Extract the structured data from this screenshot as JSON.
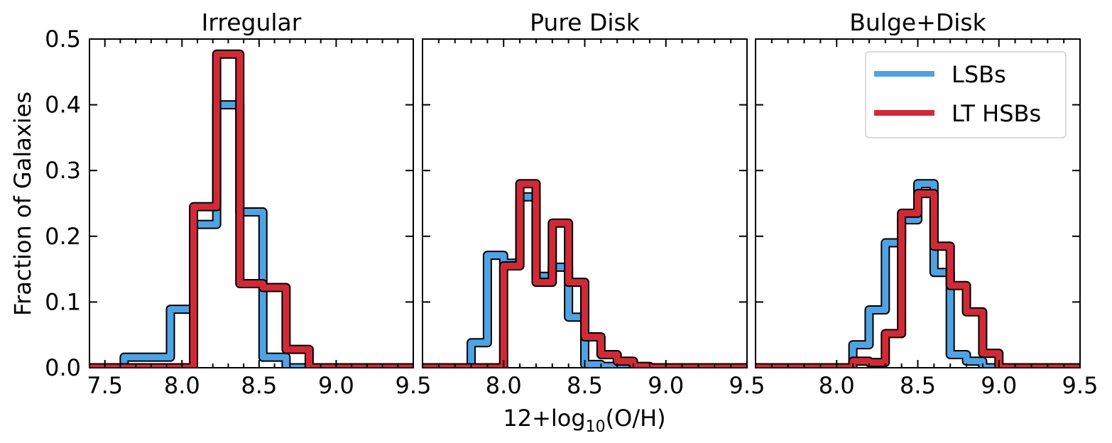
{
  "colors": {
    "LSBs": "#4fa3e3",
    "LT HSBs": "#d12a37"
  },
  "ylabel": "Fraction of Galaxies",
  "xlabel": "12+log",
  "xlabel_sub": "10",
  "xlabel_end": "(O/H)",
  "legend": [
    {
      "key": "LSBs",
      "label": "LSBs"
    },
    {
      "key": "LT HSBs",
      "label": "LT HSBs"
    }
  ],
  "chart_data": [
    {
      "type": "histogram",
      "title": "Irregular",
      "xlim": [
        7.4,
        9.5
      ],
      "ylim": [
        0,
        0.5
      ],
      "xticks": [
        "7.5",
        "8.0",
        "8.5",
        "9.0",
        "9.5"
      ],
      "yticks": [
        "0.0",
        "0.1",
        "0.2",
        "0.3",
        "0.4",
        "0.5"
      ],
      "bin_edges": [
        7.4,
        7.475,
        7.55,
        7.625,
        7.7,
        7.775,
        7.85,
        7.925,
        8.0,
        8.075,
        8.15,
        8.225,
        8.3,
        8.375,
        8.45,
        8.525,
        8.6,
        8.675,
        8.75,
        8.825,
        8.9,
        8.975,
        9.05,
        9.125,
        9.2,
        9.275,
        9.35,
        9.425,
        9.5
      ],
      "series": [
        {
          "name": "LSBs",
          "values": [
            0,
            0,
            0,
            0.016,
            0.016,
            0.016,
            0.016,
            0.089,
            0.089,
            0.218,
            0.218,
            0.4,
            0.4,
            0.237,
            0.237,
            0.016,
            0.016,
            0,
            0,
            0,
            0,
            0,
            0,
            0,
            0,
            0,
            0,
            0
          ]
        },
        {
          "name": "LT HSBs",
          "values": [
            0,
            0,
            0,
            0,
            0,
            0,
            0,
            0,
            0,
            0.245,
            0.245,
            0.477,
            0.477,
            0.128,
            0.128,
            0.122,
            0.122,
            0.028,
            0.028,
            0,
            0,
            0,
            0,
            0,
            0,
            0,
            0,
            0
          ]
        }
      ]
    },
    {
      "type": "histogram",
      "title": "Pure Disk",
      "xlim": [
        7.5,
        9.5
      ],
      "ylim": [
        0,
        0.5
      ],
      "xticks": [
        "8.0",
        "8.5",
        "9.0",
        "9.5"
      ],
      "yticks": [],
      "bin_edges": [
        7.5,
        7.6,
        7.7,
        7.8,
        7.9,
        8.0,
        8.1,
        8.2,
        8.3,
        8.4,
        8.5,
        8.6,
        8.7,
        8.8,
        8.9,
        9.0,
        9.1,
        9.2,
        9.3,
        9.4,
        9.5
      ],
      "series": [
        {
          "name": "LSBs",
          "values": [
            0,
            0,
            0,
            0.038,
            0.171,
            0.159,
            0.26,
            0.139,
            0.153,
            0.077,
            0.005,
            0.002,
            0,
            0,
            0,
            0,
            0,
            0,
            0,
            0
          ]
        },
        {
          "name": "LT HSBs",
          "values": [
            0,
            0,
            0,
            0,
            0,
            0.155,
            0.28,
            0.13,
            0.22,
            0.13,
            0.047,
            0.02,
            0.01,
            0.002,
            0,
            0,
            0,
            0,
            0,
            0
          ]
        }
      ]
    },
    {
      "type": "histogram",
      "title": "Bulge+Disk",
      "xlim": [
        7.5,
        9.5
      ],
      "ylim": [
        0,
        0.5
      ],
      "xticks": [
        "8.0",
        "8.5",
        "9.0",
        "9.5"
      ],
      "yticks": [],
      "bin_edges": [
        7.5,
        7.6,
        7.7,
        7.8,
        7.9,
        8.0,
        8.1,
        8.2,
        8.3,
        8.4,
        8.5,
        8.6,
        8.7,
        8.8,
        8.9,
        9.0,
        9.1,
        9.2,
        9.3,
        9.4,
        9.5
      ],
      "series": [
        {
          "name": "LSBs",
          "values": [
            0,
            0,
            0,
            0,
            0,
            0,
            0.035,
            0.088,
            0.19,
            0.225,
            0.28,
            0.145,
            0.02,
            0.01,
            0,
            0,
            0,
            0,
            0,
            0
          ]
        },
        {
          "name": "LT HSBs",
          "values": [
            0,
            0,
            0,
            0,
            0,
            0,
            0.01,
            0.008,
            0.052,
            0.235,
            0.265,
            0.185,
            0.125,
            0.085,
            0.022,
            0,
            0,
            0,
            0,
            0
          ]
        }
      ]
    }
  ]
}
